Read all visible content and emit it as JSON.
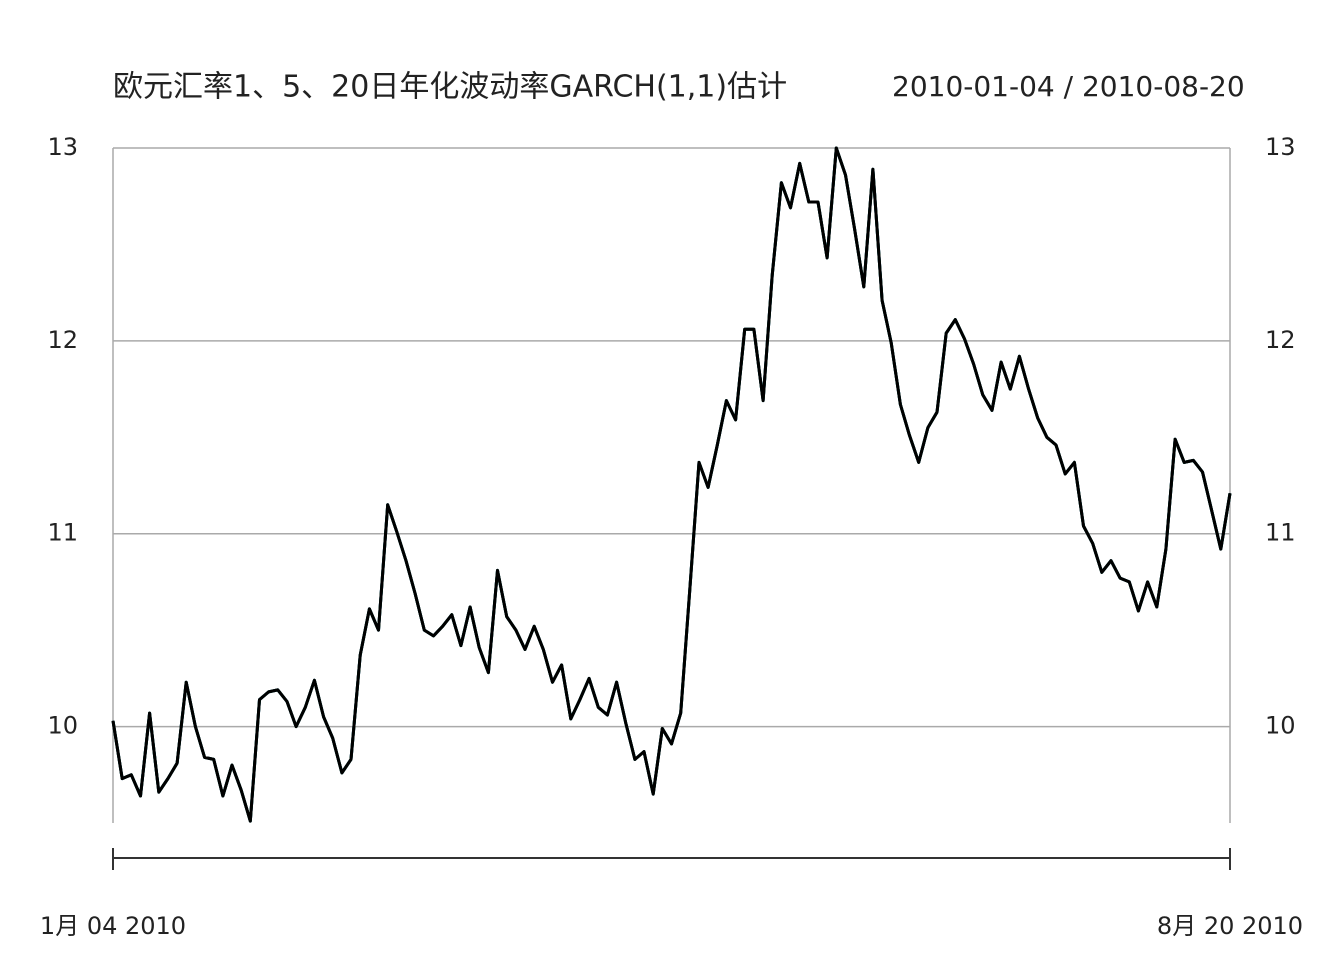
{
  "chart_data": {
    "type": "line",
    "title": "欧元汇率1、5、20日年化波动率GARCH(1,1)估计",
    "subtitle": "2010-01-04 / 2010-08-20",
    "categories": [
      "1月 04 2010",
      null,
      null,
      null,
      null,
      null,
      null,
      null,
      null,
      null,
      null,
      null,
      null,
      null,
      null,
      null,
      null,
      null,
      null,
      null,
      null,
      null,
      null,
      null,
      null,
      null,
      null,
      null,
      null,
      null,
      null,
      null,
      null,
      null,
      null,
      null,
      null,
      null,
      null,
      null,
      null,
      null,
      null,
      null,
      null,
      null,
      null,
      null,
      null,
      null,
      null,
      null,
      null,
      null,
      null,
      null,
      null,
      null,
      null,
      null,
      null,
      null,
      null,
      null,
      null,
      null,
      null,
      null,
      null,
      null,
      null,
      null,
      null,
      null,
      null,
      null,
      null,
      null,
      null,
      null,
      null,
      null,
      null,
      null,
      null,
      null,
      null,
      null,
      null,
      null,
      null,
      null,
      null,
      null,
      null,
      null,
      null,
      null,
      null,
      null,
      null,
      null,
      null,
      null,
      null,
      null,
      null,
      null,
      null,
      null,
      null,
      null,
      null,
      null,
      null,
      null,
      null,
      null,
      null,
      null,
      null,
      null,
      "8月 20 2010"
    ],
    "series": [
      {
        "color": "#0000ff",
        "values": [
          10.03,
          9.73,
          9.75,
          9.64,
          10.07,
          9.66,
          9.73,
          9.81,
          10.23,
          10.0,
          9.84,
          9.83,
          9.64,
          9.8,
          9.67,
          9.51,
          10.14,
          10.18,
          10.19,
          10.13,
          10.0,
          10.1,
          10.24,
          10.05,
          9.94,
          9.76,
          9.83,
          10.37,
          10.61,
          10.5,
          11.15,
          11.01,
          10.86,
          10.69,
          10.5,
          10.47,
          10.52,
          10.58,
          10.42,
          10.62,
          10.41,
          10.28,
          10.81,
          10.57,
          10.5,
          10.4,
          10.52,
          10.4,
          10.23,
          10.32,
          10.04,
          10.14,
          10.25,
          10.1,
          10.06,
          10.23,
          10.02,
          9.83,
          9.87,
          9.65,
          9.99,
          9.91,
          10.07,
          10.71,
          11.37,
          11.24,
          11.46,
          11.69,
          11.59,
          12.06,
          12.06,
          11.69,
          12.34,
          12.82,
          12.69,
          12.92,
          12.72,
          12.72,
          12.43,
          13.0,
          12.86,
          12.58,
          12.28,
          12.89,
          12.21,
          11.99,
          11.67,
          11.51,
          11.37,
          11.55,
          11.63,
          12.04,
          12.11,
          12.01,
          11.88,
          11.72,
          11.64,
          11.89,
          11.75,
          11.92,
          11.75,
          11.6,
          11.5,
          11.46,
          11.31,
          11.37,
          11.04,
          10.95,
          10.8,
          10.86,
          10.77,
          10.75,
          10.6,
          10.75,
          10.62,
          10.92,
          11.49,
          11.37,
          11.38,
          11.32,
          11.12,
          10.92,
          11.21
        ]
      },
      {
        "color": "#008000",
        "values": [
          10.03,
          9.73,
          9.75,
          9.64,
          10.07,
          9.66,
          9.73,
          9.81,
          10.23,
          10.0,
          9.84,
          9.83,
          9.64,
          9.8,
          9.67,
          9.51,
          10.14,
          10.18,
          10.19,
          10.13,
          10.0,
          10.1,
          10.24,
          10.05,
          9.94,
          9.76,
          9.83,
          10.37,
          10.61,
          10.5,
          11.15,
          11.01,
          10.86,
          10.69,
          10.5,
          10.47,
          10.52,
          10.58,
          10.42,
          10.62,
          10.41,
          10.28,
          10.81,
          10.57,
          10.5,
          10.4,
          10.52,
          10.4,
          10.23,
          10.32,
          10.04,
          10.14,
          10.25,
          10.1,
          10.06,
          10.23,
          10.02,
          9.83,
          9.87,
          9.65,
          9.99,
          9.91,
          10.07,
          10.71,
          11.37,
          11.24,
          11.46,
          11.69,
          11.59,
          12.06,
          12.06,
          11.69,
          12.34,
          12.82,
          12.69,
          12.92,
          12.72,
          12.72,
          12.43,
          13.0,
          12.86,
          12.58,
          12.28,
          12.89,
          12.21,
          11.99,
          11.67,
          11.51,
          11.37,
          11.55,
          11.63,
          12.04,
          12.11,
          12.01,
          11.88,
          11.72,
          11.64,
          11.89,
          11.75,
          11.92,
          11.75,
          11.6,
          11.5,
          11.46,
          11.31,
          11.37,
          11.04,
          10.95,
          10.8,
          10.86,
          10.77,
          10.75,
          10.6,
          10.75,
          10.62,
          10.92,
          11.49,
          11.37,
          11.38,
          11.32,
          11.12,
          10.92,
          11.21
        ]
      },
      {
        "color": "#000000",
        "values": [
          10.03,
          9.73,
          9.75,
          9.64,
          10.07,
          9.66,
          9.73,
          9.81,
          10.23,
          10.0,
          9.84,
          9.83,
          9.64,
          9.8,
          9.67,
          9.51,
          10.14,
          10.18,
          10.19,
          10.13,
          10.0,
          10.1,
          10.24,
          10.05,
          9.94,
          9.76,
          9.83,
          10.37,
          10.61,
          10.5,
          11.15,
          11.01,
          10.86,
          10.69,
          10.5,
          10.47,
          10.52,
          10.58,
          10.42,
          10.62,
          10.41,
          10.28,
          10.81,
          10.57,
          10.5,
          10.4,
          10.52,
          10.4,
          10.23,
          10.32,
          10.04,
          10.14,
          10.25,
          10.1,
          10.06,
          10.23,
          10.02,
          9.83,
          9.87,
          9.65,
          9.99,
          9.91,
          10.07,
          10.71,
          11.37,
          11.24,
          11.46,
          11.69,
          11.59,
          12.06,
          12.06,
          11.69,
          12.34,
          12.82,
          12.69,
          12.92,
          12.72,
          12.72,
          12.43,
          13.0,
          12.86,
          12.58,
          12.28,
          12.89,
          12.21,
          11.99,
          11.67,
          11.51,
          11.37,
          11.55,
          11.63,
          12.04,
          12.11,
          12.01,
          11.88,
          11.72,
          11.64,
          11.89,
          11.75,
          11.92,
          11.75,
          11.6,
          11.5,
          11.46,
          11.31,
          11.37,
          11.04,
          10.95,
          10.8,
          10.86,
          10.77,
          10.75,
          10.6,
          10.75,
          10.62,
          10.92,
          11.49,
          11.37,
          11.38,
          11.32,
          11.12,
          10.92,
          11.21
        ]
      }
    ],
    "ylim": [
      9.5,
      13
    ],
    "yticks": [
      10,
      11,
      12,
      13
    ],
    "grid": true
  }
}
